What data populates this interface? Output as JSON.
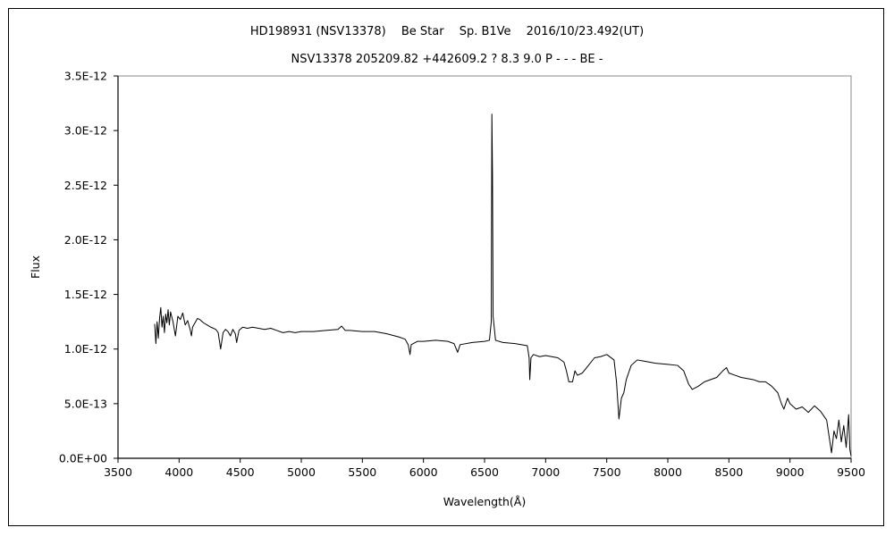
{
  "chart_data": {
    "type": "line",
    "title": "HD198931 (NSV13378)　 Be Star　 Sp. B1Ve　 2016/10/23.492(UT)",
    "subtitle": "NSV13378 205209.82 +442609.2 ? 8.3 9.0 P - - - BE -",
    "xlabel": "Wavelength(Å)",
    "ylabel": "Flux",
    "xlim": [
      3500,
      9500
    ],
    "ylim": [
      0,
      3.5e-12
    ],
    "x_ticks": [
      3500,
      4000,
      4500,
      5000,
      5500,
      6000,
      6500,
      7000,
      7500,
      8000,
      8500,
      9000,
      9500
    ],
    "x_tick_labels": [
      "3500",
      "4000",
      "4500",
      "5000",
      "5500",
      "6000",
      "6500",
      "7000",
      "7500",
      "8000",
      "8500",
      "9000",
      "9500"
    ],
    "y_ticks": [
      0,
      5e-13,
      1e-12,
      1.5e-12,
      2e-12,
      2.5e-12,
      3e-12,
      3.5e-12
    ],
    "y_tick_labels": [
      "0.0E+00",
      "5.0E-13",
      "1.0E-12",
      "1.5E-12",
      "2.0E-12",
      "2.5E-12",
      "3.0E-12",
      "3.5E-12"
    ],
    "grid": false,
    "legend": "none",
    "series": [
      {
        "color": "#000000",
        "points": [
          [
            3800,
            1.23e-12
          ],
          [
            3810,
            1.05e-12
          ],
          [
            3820,
            1.25e-12
          ],
          [
            3830,
            1.1e-12
          ],
          [
            3840,
            1.28e-12
          ],
          [
            3850,
            1.38e-12
          ],
          [
            3860,
            1.2e-12
          ],
          [
            3870,
            1.3e-12
          ],
          [
            3880,
            1.15e-12
          ],
          [
            3890,
            1.32e-12
          ],
          [
            3900,
            1.24e-12
          ],
          [
            3910,
            1.36e-12
          ],
          [
            3920,
            1.22e-12
          ],
          [
            3930,
            1.34e-12
          ],
          [
            3950,
            1.25e-12
          ],
          [
            3970,
            1.12e-12
          ],
          [
            3990,
            1.3e-12
          ],
          [
            4010,
            1.27e-12
          ],
          [
            4030,
            1.33e-12
          ],
          [
            4050,
            1.22e-12
          ],
          [
            4070,
            1.26e-12
          ],
          [
            4090,
            1.18e-12
          ],
          [
            4101,
            1.12e-12
          ],
          [
            4110,
            1.2e-12
          ],
          [
            4130,
            1.24e-12
          ],
          [
            4150,
            1.28e-12
          ],
          [
            4170,
            1.27e-12
          ],
          [
            4200,
            1.24e-12
          ],
          [
            4230,
            1.22e-12
          ],
          [
            4260,
            1.2e-12
          ],
          [
            4300,
            1.18e-12
          ],
          [
            4320,
            1.15e-12
          ],
          [
            4340,
            1e-12
          ],
          [
            4360,
            1.15e-12
          ],
          [
            4380,
            1.18e-12
          ],
          [
            4400,
            1.16e-12
          ],
          [
            4420,
            1.12e-12
          ],
          [
            4440,
            1.18e-12
          ],
          [
            4460,
            1.14e-12
          ],
          [
            4471,
            1.06e-12
          ],
          [
            4490,
            1.17e-12
          ],
          [
            4520,
            1.2e-12
          ],
          [
            4560,
            1.19e-12
          ],
          [
            4600,
            1.2e-12
          ],
          [
            4650,
            1.19e-12
          ],
          [
            4700,
            1.18e-12
          ],
          [
            4750,
            1.19e-12
          ],
          [
            4800,
            1.17e-12
          ],
          [
            4850,
            1.15e-12
          ],
          [
            4900,
            1.16e-12
          ],
          [
            4950,
            1.15e-12
          ],
          [
            5000,
            1.16e-12
          ],
          [
            5100,
            1.16e-12
          ],
          [
            5200,
            1.17e-12
          ],
          [
            5300,
            1.18e-12
          ],
          [
            5330,
            1.21e-12
          ],
          [
            5360,
            1.17e-12
          ],
          [
            5400,
            1.17e-12
          ],
          [
            5500,
            1.16e-12
          ],
          [
            5600,
            1.16e-12
          ],
          [
            5700,
            1.14e-12
          ],
          [
            5800,
            1.11e-12
          ],
          [
            5850,
            1.09e-12
          ],
          [
            5875,
            1.04e-12
          ],
          [
            5890,
            9.5e-13
          ],
          [
            5900,
            1.04e-12
          ],
          [
            5950,
            1.07e-12
          ],
          [
            6000,
            1.07e-12
          ],
          [
            6100,
            1.08e-12
          ],
          [
            6200,
            1.07e-12
          ],
          [
            6250,
            1.05e-12
          ],
          [
            6280,
            9.7e-13
          ],
          [
            6300,
            1.04e-12
          ],
          [
            6400,
            1.06e-12
          ],
          [
            6500,
            1.07e-12
          ],
          [
            6540,
            1.08e-12
          ],
          [
            6555,
            1.25e-12
          ],
          [
            6560,
            3.15e-12
          ],
          [
            6565,
            2.6e-12
          ],
          [
            6570,
            1.3e-12
          ],
          [
            6590,
            1.08e-12
          ],
          [
            6650,
            1.06e-12
          ],
          [
            6750,
            1.05e-12
          ],
          [
            6850,
            1.03e-12
          ],
          [
            6865,
            9.2e-13
          ],
          [
            6870,
            7.2e-13
          ],
          [
            6880,
            9.2e-13
          ],
          [
            6900,
            9.5e-13
          ],
          [
            6950,
            9.3e-13
          ],
          [
            7000,
            9.4e-13
          ],
          [
            7050,
            9.3e-13
          ],
          [
            7100,
            9.2e-13
          ],
          [
            7150,
            8.8e-13
          ],
          [
            7170,
            8e-13
          ],
          [
            7190,
            7e-13
          ],
          [
            7220,
            7e-13
          ],
          [
            7240,
            8e-13
          ],
          [
            7260,
            7.6e-13
          ],
          [
            7300,
            7.8e-13
          ],
          [
            7350,
            8.5e-13
          ],
          [
            7400,
            9.2e-13
          ],
          [
            7450,
            9.3e-13
          ],
          [
            7500,
            9.5e-13
          ],
          [
            7560,
            9e-13
          ],
          [
            7580,
            7e-13
          ],
          [
            7600,
            3.6e-13
          ],
          [
            7620,
            5.5e-13
          ],
          [
            7640,
            6e-13
          ],
          [
            7660,
            7.2e-13
          ],
          [
            7700,
            8.5e-13
          ],
          [
            7750,
            9e-13
          ],
          [
            7800,
            8.9e-13
          ],
          [
            7900,
            8.7e-13
          ],
          [
            8000,
            8.6e-13
          ],
          [
            8080,
            8.5e-13
          ],
          [
            8130,
            8e-13
          ],
          [
            8170,
            6.8e-13
          ],
          [
            8200,
            6.3e-13
          ],
          [
            8250,
            6.6e-13
          ],
          [
            8300,
            7e-13
          ],
          [
            8400,
            7.4e-13
          ],
          [
            8450,
            8e-13
          ],
          [
            8480,
            8.3e-13
          ],
          [
            8500,
            7.8e-13
          ],
          [
            8550,
            7.6e-13
          ],
          [
            8600,
            7.4e-13
          ],
          [
            8650,
            7.3e-13
          ],
          [
            8700,
            7.2e-13
          ],
          [
            8750,
            7e-13
          ],
          [
            8800,
            7e-13
          ],
          [
            8850,
            6.6e-13
          ],
          [
            8900,
            6e-13
          ],
          [
            8930,
            5e-13
          ],
          [
            8950,
            4.5e-13
          ],
          [
            8980,
            5.5e-13
          ],
          [
            9000,
            5e-13
          ],
          [
            9050,
            4.5e-13
          ],
          [
            9100,
            4.7e-13
          ],
          [
            9150,
            4.2e-13
          ],
          [
            9200,
            4.8e-13
          ],
          [
            9250,
            4.3e-13
          ],
          [
            9300,
            3.5e-13
          ],
          [
            9320,
            2e-13
          ],
          [
            9340,
            5e-14
          ],
          [
            9360,
            2.5e-13
          ],
          [
            9380,
            1.8e-13
          ],
          [
            9400,
            3.5e-13
          ],
          [
            9420,
            1.5e-13
          ],
          [
            9440,
            3e-13
          ],
          [
            9460,
            1e-13
          ],
          [
            9480,
            4e-13
          ],
          [
            9490,
            8e-14
          ],
          [
            9500,
            2e-14
          ]
        ]
      }
    ]
  }
}
